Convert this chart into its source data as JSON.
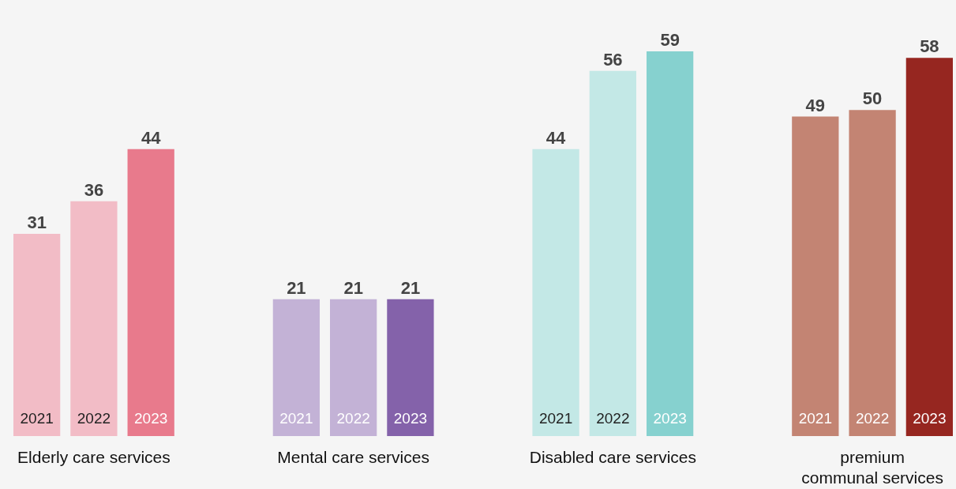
{
  "chart_data": {
    "type": "bar",
    "categories": [
      "Elderly care services",
      "Mental care services",
      "Disabled care services",
      "premium communal services"
    ],
    "series": [
      {
        "name": "2021",
        "colors": [
          "#f2bcc6",
          "#c3b2d6",
          "#c3e8e6",
          "#c38473"
        ],
        "values": [
          31,
          21,
          44,
          49
        ]
      },
      {
        "name": "2022",
        "colors": [
          "#f2bcc6",
          "#c3b2d6",
          "#c3e8e6",
          "#c38473"
        ],
        "values": [
          36,
          21,
          56,
          50
        ]
      },
      {
        "name": "2023",
        "colors": [
          "#e87a8c",
          "#8462aa",
          "#86d1cf",
          "#962620"
        ],
        "values": [
          44,
          21,
          59,
          58
        ]
      }
    ],
    "data_labels": true
  }
}
